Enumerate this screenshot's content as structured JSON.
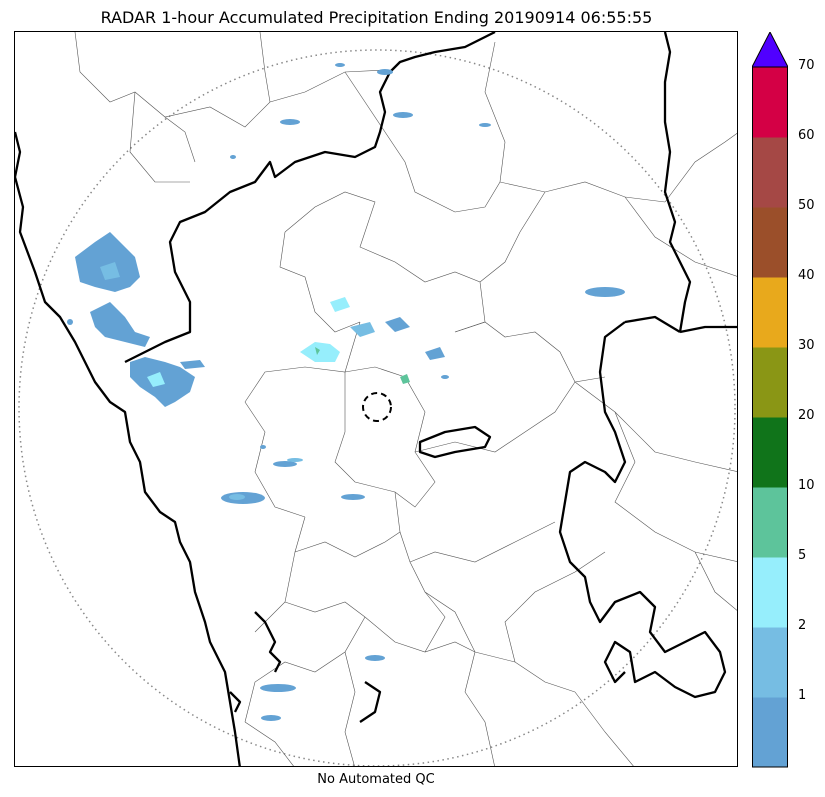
{
  "title": "RADAR 1-hour Accumulated Precipitation Ending 20190914 06:55:55",
  "caption": "No Automated QC",
  "colorbar": {
    "labels": [
      "1",
      "2",
      "5",
      "10",
      "20",
      "30",
      "40",
      "50",
      "60",
      "70"
    ],
    "colors": [
      "#63a2d4",
      "#76bde3",
      "#96eefc",
      "#5dc49b",
      "#10741a",
      "#8a9615",
      "#e8a91c",
      "#9b4f2a",
      "#a54845",
      "#d40045"
    ],
    "extend_color": "#5000ff"
  },
  "legend_levels": {
    "light": "#63a2d4",
    "light2": "#76bde3",
    "cyan": "#96eefc",
    "teal": "#5dc49b"
  }
}
